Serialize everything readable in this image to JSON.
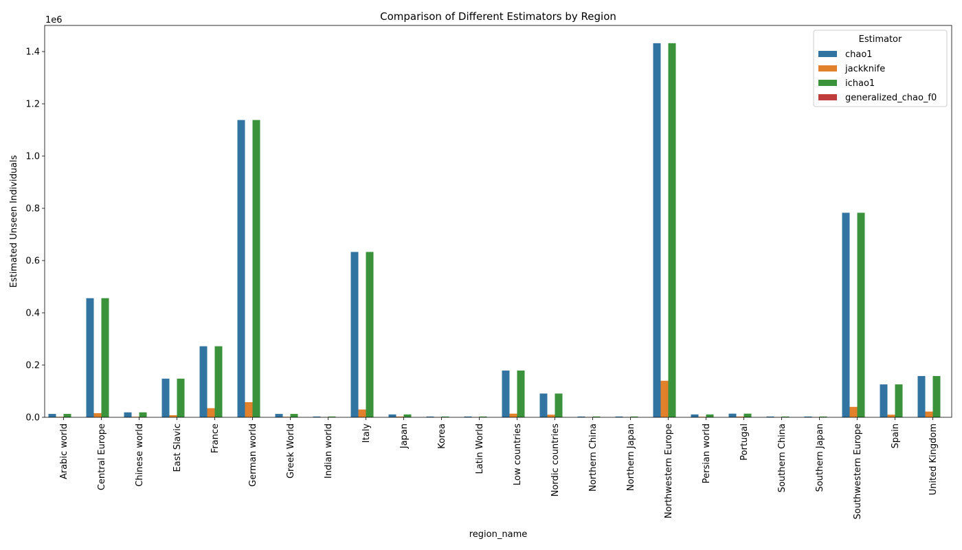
{
  "chart_data": {
    "type": "bar",
    "title": "Comparison of Different Estimators by Region",
    "xlabel": "region_name",
    "ylabel": "Estimated Unseen Individuals",
    "y_offset_label": "1e6",
    "ylim": [
      0,
      1.5
    ],
    "yticks": [
      "0.0",
      "0.2",
      "0.4",
      "0.6",
      "0.8",
      "1.0",
      "1.2",
      "1.4"
    ],
    "legend": {
      "title": "Estimator",
      "placement": "top-right"
    },
    "categories": [
      "Arabic world",
      "Central Europe",
      "Chinese world",
      "East Slavic",
      "France",
      "German world",
      "Greek World",
      "Indian world",
      "Italy",
      "Japan",
      "Korea",
      "Latin World",
      "Low countries",
      "Nordic countries",
      "Northern China",
      "Northern Japan",
      "Northwestern Europe",
      "Persian world",
      "Portugal",
      "Southern China",
      "Southern Japan",
      "Southwestern Europe",
      "Spain",
      "United Kingdom"
    ],
    "series": [
      {
        "name": "chao1",
        "color": "#3274a1",
        "values": [
          0.013,
          0.456,
          0.019,
          0.148,
          0.272,
          1.138,
          0.013,
          0.003,
          0.633,
          0.011,
          0.003,
          0.003,
          0.179,
          0.091,
          0.003,
          0.003,
          1.432,
          0.011,
          0.014,
          0.003,
          0.003,
          0.783,
          0.126,
          0.158
        ]
      },
      {
        "name": "jackknife",
        "color": "#e1812c",
        "values": [
          0.002,
          0.016,
          0.002,
          0.008,
          0.035,
          0.058,
          0.002,
          0.001,
          0.03,
          0.003,
          0.001,
          0.001,
          0.014,
          0.01,
          0.001,
          0.001,
          0.14,
          0.002,
          0.003,
          0.001,
          0.001,
          0.04,
          0.01,
          0.022
        ]
      },
      {
        "name": "ichao1",
        "color": "#3a923a",
        "values": [
          0.013,
          0.456,
          0.019,
          0.148,
          0.272,
          1.138,
          0.013,
          0.003,
          0.633,
          0.011,
          0.003,
          0.003,
          0.179,
          0.091,
          0.003,
          0.003,
          1.432,
          0.011,
          0.014,
          0.003,
          0.003,
          0.783,
          0.126,
          0.158
        ]
      },
      {
        "name": "generalized_chao_f0",
        "color": "#c03d3e",
        "values": [
          0,
          0,
          0,
          0,
          0,
          0,
          0,
          0,
          0,
          0,
          0,
          0,
          0,
          0,
          0,
          0,
          0,
          0,
          0,
          0,
          0,
          0,
          0,
          0
        ]
      }
    ]
  }
}
